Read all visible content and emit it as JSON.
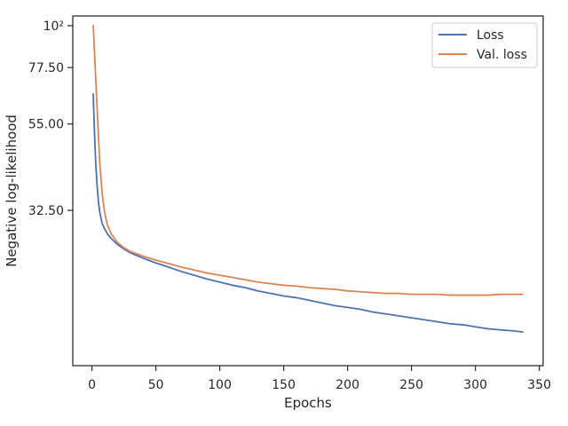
{
  "chart_data": {
    "type": "line",
    "title": "",
    "xlabel": "Epochs",
    "ylabel": "Negative log-likelihood",
    "xlim": [
      -15,
      353
    ],
    "ylim": [
      12.63,
      106.1
    ],
    "yscale": "log",
    "grid": false,
    "legend_position": "top-right",
    "xticks": [
      0,
      50,
      100,
      150,
      200,
      250,
      300,
      350
    ],
    "xtick_labels": [
      "0",
      "50",
      "100",
      "150",
      "200",
      "250",
      "300",
      "350"
    ],
    "yticks": [
      32.5,
      55.0,
      77.5,
      100
    ],
    "ytick_labels": [
      "32.50",
      "55.00",
      "77.50",
      "10²"
    ],
    "x": [
      1,
      2,
      3,
      4,
      5,
      6,
      8,
      10,
      12,
      15,
      20,
      25,
      30,
      40,
      50,
      60,
      70,
      80,
      90,
      100,
      110,
      120,
      130,
      140,
      150,
      160,
      170,
      180,
      190,
      200,
      210,
      220,
      230,
      240,
      250,
      260,
      270,
      280,
      290,
      300,
      310,
      320,
      330,
      337
    ],
    "series": [
      {
        "name": "Loss",
        "color": "#4c72b0",
        "values": [
          66.0,
          52.0,
          43.0,
          38.0,
          34.5,
          32.3,
          30.0,
          29.0,
          28.2,
          27.4,
          26.4,
          25.7,
          25.1,
          24.3,
          23.6,
          23.0,
          22.4,
          21.9,
          21.4,
          21.0,
          20.6,
          20.3,
          19.9,
          19.6,
          19.3,
          19.1,
          18.8,
          18.5,
          18.2,
          18.0,
          17.8,
          17.5,
          17.3,
          17.1,
          16.9,
          16.7,
          16.5,
          16.3,
          16.2,
          16.0,
          15.8,
          15.7,
          15.6,
          15.5
        ]
      },
      {
        "name": "Val. loss",
        "color": "#dd8452",
        "values": [
          100.0,
          85.0,
          72.0,
          61.0,
          52.0,
          44.0,
          36.0,
          32.0,
          29.8,
          28.2,
          26.7,
          25.9,
          25.3,
          24.6,
          24.0,
          23.5,
          23.0,
          22.6,
          22.2,
          21.9,
          21.6,
          21.3,
          21.0,
          20.8,
          20.6,
          20.5,
          20.3,
          20.2,
          20.1,
          19.9,
          19.8,
          19.7,
          19.6,
          19.6,
          19.5,
          19.5,
          19.5,
          19.4,
          19.4,
          19.4,
          19.4,
          19.5,
          19.5,
          19.5
        ]
      }
    ]
  }
}
